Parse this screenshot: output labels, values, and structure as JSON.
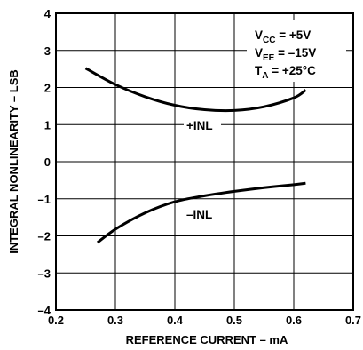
{
  "chart_data": {
    "type": "line",
    "title": "",
    "xlabel": "REFERENCE CURRENT – mA",
    "ylabel": "INTEGRAL NONLINEARITY – LSB",
    "xlim": [
      0.2,
      0.7
    ],
    "ylim": [
      -4,
      4
    ],
    "xticks": [
      "0.2",
      "0.3",
      "0.4",
      "0.5",
      "0.6",
      "0.7"
    ],
    "yticks": [
      "4",
      "3",
      "2",
      "1",
      "0",
      "–1",
      "–2",
      "–3",
      "–4"
    ],
    "grid": true,
    "conditions": {
      "vcc": {
        "main": "V",
        "sub": "CC",
        "rest": " = +5V"
      },
      "vee": {
        "main": "V",
        "sub": "EE",
        "rest": " = –15V"
      },
      "ta": {
        "main": "T",
        "sub": "A",
        "rest": " = +25°C"
      }
    },
    "series": [
      {
        "name": "+INL",
        "x": [
          0.25,
          0.3,
          0.35,
          0.4,
          0.45,
          0.5,
          0.55,
          0.6,
          0.62
        ],
        "y": [
          2.52,
          2.08,
          1.75,
          1.52,
          1.4,
          1.38,
          1.48,
          1.72,
          1.93
        ]
      },
      {
        "name": "–INL",
        "x": [
          0.27,
          0.3,
          0.35,
          0.4,
          0.45,
          0.5,
          0.55,
          0.6,
          0.62
        ],
        "y": [
          -2.18,
          -1.82,
          -1.38,
          -1.08,
          -0.92,
          -0.8,
          -0.7,
          -0.62,
          -0.58
        ]
      }
    ]
  }
}
